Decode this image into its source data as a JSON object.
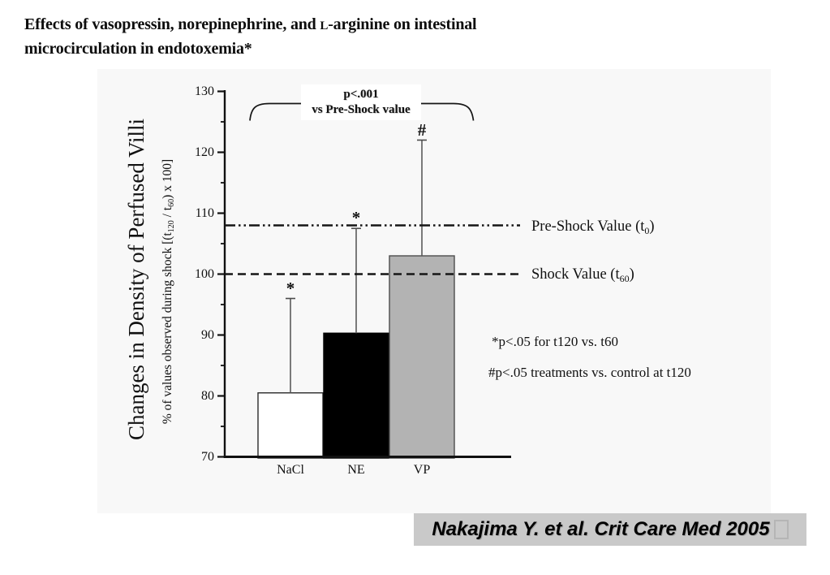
{
  "colors": {
    "panel_bg": "#f8f8f8",
    "citation_bg": "#c9c9c9",
    "axis_color": "#111111"
  },
  "title": {
    "line1_pre": "Effects of vasopressin, norepinephrine, and ",
    "line1_smallcap": "L",
    "line1_post": "-arginine on intestinal",
    "line2": "microcirculation in endotoxemia*"
  },
  "chart_data": {
    "type": "bar",
    "categories": [
      "NaCl",
      "NE",
      "VP"
    ],
    "values": [
      80.5,
      90.3,
      103
    ],
    "error_upper": [
      96,
      107.5,
      122
    ],
    "bar_colors": [
      "#ffffff",
      "#000000",
      "#b3b3b3"
    ],
    "bar_strokes": [
      "#2b2b2b",
      "#000000",
      "#4d4d4d"
    ],
    "significance_markers": [
      "*",
      "*",
      "#"
    ],
    "ylabel": "Changes in Density of Perfused Villi",
    "ylabel2": "% of values observed during shock [(t120 / t60) x 100]",
    "ylim": [
      70,
      130
    ],
    "yticks": [
      130,
      120,
      110,
      100,
      90,
      80,
      70
    ],
    "minor_yticks": [
      125,
      115,
      105,
      95,
      85,
      75
    ],
    "grid": "off",
    "legend": "none",
    "reference_lines": [
      {
        "name": "pre_shock",
        "value": 108,
        "style": "dash-dot-dot",
        "label": "Pre-Shock Value (t0)"
      },
      {
        "name": "shock",
        "value": 100,
        "style": "dashed",
        "label": "Shock Value (t60)"
      }
    ],
    "bracket": {
      "line1": "p<.001",
      "line2": "vs Pre-Shock value",
      "spans_categories": [
        "NaCl",
        "VP"
      ]
    },
    "footnotes": [
      "*p<.05 for t120 vs. t60",
      "#p<.05 treatments vs. control at t120"
    ]
  },
  "ylabel_sub_parts": {
    "p1": "% of values observed during shock [(t",
    "s1": "120",
    "p2": " / t",
    "s2": "60",
    "p3": ") x 100]"
  },
  "ref_labels": {
    "pre": {
      "text": "Pre-Shock Value (t",
      "sub": "0",
      "close": ")"
    },
    "shock": {
      "text": "Shock Value (t",
      "sub": "60",
      "close": ")"
    }
  },
  "annotations": {
    "sig_line1": "p<.001",
    "sig_line2": "vs Pre-Shock value",
    "star_note": "*p<.05 for t120 vs. t60",
    "hash_note": "#p<.05 treatments vs. control at t120"
  },
  "citation": {
    "text": "Nakajima Y. et al. Crit Care Med 2005",
    "trailing_glyph": "empty-box"
  }
}
